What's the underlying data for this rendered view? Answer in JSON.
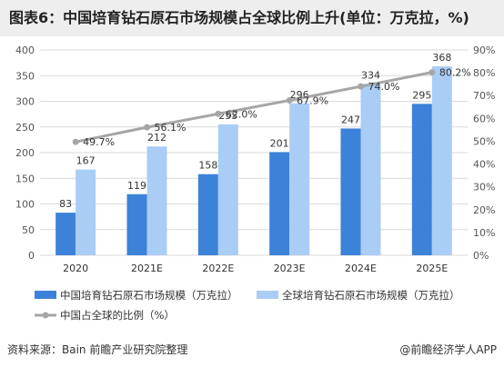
{
  "title": "图表6：中国培育钻石原石市场规模占全球比例上升(单位：万克拉，%)",
  "footer": {
    "source": "资料来源：Bain 前瞻产业研究院整理",
    "brand": "@前瞻经济学人APP"
  },
  "chart_data": {
    "type": "bar",
    "categories": [
      "2020",
      "2021E",
      "2022E",
      "2023E",
      "2024E",
      "2025E"
    ],
    "series": [
      {
        "name": "中国培育钻石原石市场规模（万克拉）",
        "type": "bar",
        "axis": "left",
        "color": "#3c82d8",
        "values": [
          83,
          119,
          158,
          201,
          247,
          295
        ]
      },
      {
        "name": "全球培育钻石原石市场规模（万克拉）",
        "type": "bar",
        "axis": "left",
        "color": "#aacdf6",
        "values": [
          167,
          212,
          255,
          296,
          334,
          368
        ]
      },
      {
        "name": "中国占全球的比例（%）",
        "type": "line",
        "axis": "right",
        "color": "#a6a6a6",
        "values": [
          49.7,
          56.1,
          62.0,
          67.9,
          74.0,
          80.2
        ],
        "labels": [
          "49.7%",
          "56.1%",
          "62.0%",
          "67.9%",
          "74.0%",
          "80.2%"
        ]
      }
    ],
    "left_axis": {
      "ylim": [
        0,
        400
      ],
      "ticks": [
        "0",
        "50",
        "100",
        "150",
        "200",
        "250",
        "300",
        "350",
        "400"
      ]
    },
    "right_axis": {
      "ylim": [
        0,
        90
      ],
      "ticks": [
        "0%",
        "10%",
        "20%",
        "30%",
        "40%",
        "50%",
        "60%",
        "70%",
        "80%",
        "90%"
      ]
    },
    "grid": true,
    "legend_position": "bottom"
  }
}
